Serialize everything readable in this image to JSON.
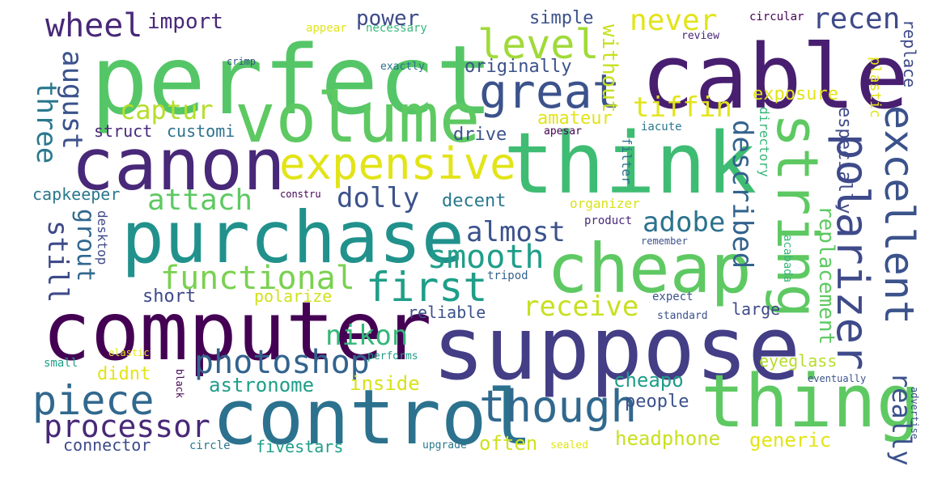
{
  "words": [
    {
      "text": "perfect",
      "color": "#55c667"
    },
    {
      "text": "cable",
      "color": "#481f70"
    },
    {
      "text": "think",
      "color": "#3fbc73"
    },
    {
      "text": "suppose",
      "color": "#433e85"
    },
    {
      "text": "computer",
      "color": "#440154"
    },
    {
      "text": "control",
      "color": "#2c728e"
    },
    {
      "text": "volume",
      "color": "#5ec962"
    },
    {
      "text": "canon",
      "color": "#482878"
    },
    {
      "text": "purchase",
      "color": "#21918c"
    },
    {
      "text": "cheap",
      "color": "#5ec962"
    },
    {
      "text": "thing",
      "color": "#5ec962"
    },
    {
      "text": "string",
      "color": "#5ec962"
    },
    {
      "text": "expensive",
      "color": "#e2e418"
    },
    {
      "text": "great",
      "color": "#3b528b"
    },
    {
      "text": "level",
      "color": "#a0da39"
    },
    {
      "text": "first",
      "color": "#1f9e89"
    },
    {
      "text": "though",
      "color": "#31688e"
    },
    {
      "text": "piece",
      "color": "#31688e"
    },
    {
      "text": "processor",
      "color": "#482878"
    },
    {
      "text": "polarizer",
      "color": "#3e4a89"
    },
    {
      "text": "excellent",
      "color": "#3b528b"
    },
    {
      "text": "photoshop",
      "color": "#33638d"
    },
    {
      "text": "functional",
      "color": "#7ad151"
    },
    {
      "text": "smooth",
      "color": "#1f9e89"
    },
    {
      "text": "wheel",
      "color": "#482878"
    },
    {
      "text": "recen",
      "color": "#3e4a89"
    },
    {
      "text": "never",
      "color": "#e2e418"
    },
    {
      "text": "tiffin",
      "color": "#e2e418"
    },
    {
      "text": "captur",
      "color": "#b5de2b"
    },
    {
      "text": "attach",
      "color": "#5ec962"
    },
    {
      "text": "dolly",
      "color": "#3b528b"
    },
    {
      "text": "almost",
      "color": "#3b528b"
    },
    {
      "text": "adobe",
      "color": "#2c728e"
    },
    {
      "text": "receive",
      "color": "#c8e020"
    },
    {
      "text": "nikon",
      "color": "#35b779"
    },
    {
      "text": "described",
      "color": "#33638d"
    },
    {
      "text": "three",
      "color": "#2a788e"
    },
    {
      "text": "august",
      "color": "#3b528b"
    },
    {
      "text": "still",
      "color": "#3e4a89"
    },
    {
      "text": "grout",
      "color": "#31688e"
    },
    {
      "text": "replacement",
      "color": "#5ec962"
    },
    {
      "text": "really",
      "color": "#3b528b"
    },
    {
      "text": "import",
      "color": "#482878"
    },
    {
      "text": "power",
      "color": "#3e4a89"
    },
    {
      "text": "simple",
      "color": "#3b528b"
    },
    {
      "text": "originally",
      "color": "#3b528b"
    },
    {
      "text": "without",
      "color": "#c8e020"
    },
    {
      "text": "exposure",
      "color": "#e2e418"
    },
    {
      "text": "amateur",
      "color": "#e2e418"
    },
    {
      "text": "drive",
      "color": "#3b528b"
    },
    {
      "text": "especially",
      "color": "#3e4a89"
    },
    {
      "text": "replace",
      "color": "#3e4a89"
    },
    {
      "text": "plastic",
      "color": "#e2e418"
    },
    {
      "text": "struct",
      "color": "#482878"
    },
    {
      "text": "customi",
      "color": "#2c728e"
    },
    {
      "text": "capkeeper",
      "color": "#2a788e"
    },
    {
      "text": "decent",
      "color": "#2a788e"
    },
    {
      "text": "short",
      "color": "#3e4a89"
    },
    {
      "text": "polarize",
      "color": "#d0e11c"
    },
    {
      "text": "reliable",
      "color": "#3b528b"
    },
    {
      "text": "large",
      "color": "#3e4a89"
    },
    {
      "text": "eyeglass",
      "color": "#b5de2b"
    },
    {
      "text": "cheapo",
      "color": "#1f9e89"
    },
    {
      "text": "people",
      "color": "#3b528b"
    },
    {
      "text": "inside",
      "color": "#d8e219"
    },
    {
      "text": "astronome",
      "color": "#1f9e89"
    },
    {
      "text": "didnt",
      "color": "#e2e418"
    },
    {
      "text": "connector",
      "color": "#3e4a89"
    },
    {
      "text": "fivestars",
      "color": "#1f9e89"
    },
    {
      "text": "often",
      "color": "#d0e11c"
    },
    {
      "text": "headphone",
      "color": "#c8e020"
    },
    {
      "text": "generic",
      "color": "#e2e418"
    },
    {
      "text": "desktop",
      "color": "#3e4a89"
    },
    {
      "text": "filter",
      "color": "#2c728e"
    },
    {
      "text": "directory",
      "color": "#35b779"
    },
    {
      "text": "organizer",
      "color": "#d8e219"
    },
    {
      "text": "product",
      "color": "#482878"
    },
    {
      "text": "remember",
      "color": "#3b528b"
    },
    {
      "text": "acabada",
      "color": "#35b779"
    },
    {
      "text": "tripod",
      "color": "#33638d"
    },
    {
      "text": "expect",
      "color": "#3b528b"
    },
    {
      "text": "standard",
      "color": "#3b528b"
    },
    {
      "text": "performs",
      "color": "#1f9e89"
    },
    {
      "text": "elastic",
      "color": "#e2e418"
    },
    {
      "text": "small",
      "color": "#1f9e89"
    },
    {
      "text": "black",
      "color": "#440154"
    },
    {
      "text": "circle",
      "color": "#2a788e"
    },
    {
      "text": "upgrade",
      "color": "#2a788e"
    },
    {
      "text": "sealed",
      "color": "#e2e418"
    },
    {
      "text": "eventually",
      "color": "#3b528b"
    },
    {
      "text": "advertise",
      "color": "#3b528b"
    },
    {
      "text": "appear",
      "color": "#e2e418"
    },
    {
      "text": "necessary",
      "color": "#35b779"
    },
    {
      "text": "crimp",
      "color": "#3b528b"
    },
    {
      "text": "exactly",
      "color": "#2c728e"
    },
    {
      "text": "circular",
      "color": "#440154"
    },
    {
      "text": "review",
      "color": "#482878"
    },
    {
      "text": "apesar",
      "color": "#440154"
    },
    {
      "text": "iacute",
      "color": "#2a788e"
    },
    {
      "text": "constru",
      "color": "#440154"
    }
  ]
}
